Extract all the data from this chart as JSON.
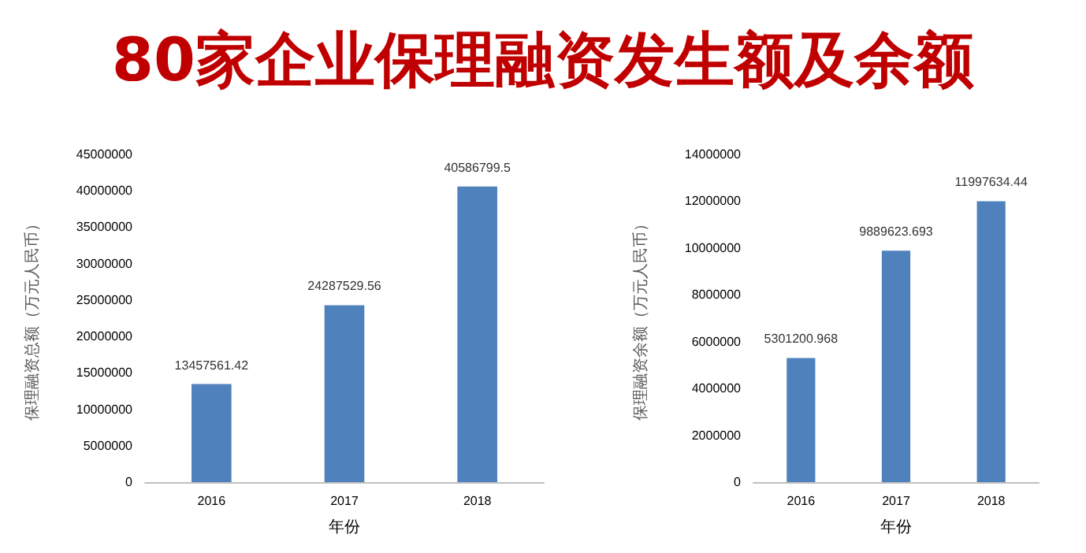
{
  "chart_data": [
    {
      "type": "bar",
      "title": "80家企业保理融资发生额及余额",
      "xlabel": "年份",
      "ylabel": "保理融资总额（万元人民币）",
      "categories": [
        "2016",
        "2017",
        "2018"
      ],
      "values": [
        13457561.42,
        24287529.56,
        40586799.5
      ],
      "color": "#4f81bd",
      "ylim": [
        0,
        45000000
      ],
      "yticks": [
        0,
        5000000,
        10000000,
        15000000,
        20000000,
        25000000,
        30000000,
        35000000,
        40000000,
        45000000
      ],
      "data_labels": true,
      "grid": false
    },
    {
      "type": "bar",
      "xlabel": "年份",
      "ylabel": "保理融资余额（万元人民币）",
      "categories": [
        "2016",
        "2017",
        "2018"
      ],
      "values": [
        5301200.968,
        9889623.693,
        11997634.44
      ],
      "color": "#4f81bd",
      "ylim": [
        0,
        14000000
      ],
      "yticks": [
        0,
        2000000,
        4000000,
        6000000,
        8000000,
        10000000,
        12000000,
        14000000
      ],
      "data_labels": true,
      "grid": false
    }
  ]
}
